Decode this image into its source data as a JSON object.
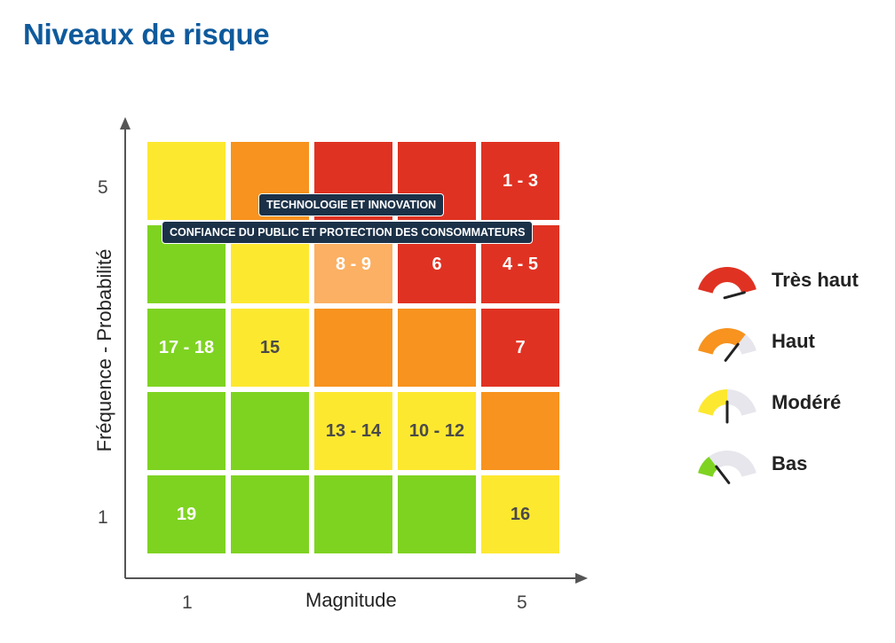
{
  "title": "Niveaux de risque",
  "axes": {
    "x_label": "Magnitude",
    "y_label": "Fréquence - Probabilité",
    "x_ticks": [
      "1",
      "5"
    ],
    "y_ticks": [
      "5",
      "1"
    ]
  },
  "colors": {
    "tres_haut": "#e03222",
    "haut": "#f7931e",
    "haut_light": "#fbb063",
    "modere": "#fde830",
    "bas": "#7ed321"
  },
  "matrix": [
    [
      {
        "level": "modere",
        "label": ""
      },
      {
        "level": "haut",
        "label": ""
      },
      {
        "level": "tres_haut",
        "label": ""
      },
      {
        "level": "tres_haut",
        "label": ""
      },
      {
        "level": "tres_haut",
        "label": "1 - 3"
      }
    ],
    [
      {
        "level": "bas",
        "label": ""
      },
      {
        "level": "modere",
        "label": ""
      },
      {
        "level": "haut_light",
        "label": "8 - 9"
      },
      {
        "level": "tres_haut",
        "label": "6"
      },
      {
        "level": "tres_haut",
        "label": "4 - 5"
      }
    ],
    [
      {
        "level": "bas",
        "label": "17 - 18"
      },
      {
        "level": "modere",
        "label": "15"
      },
      {
        "level": "haut",
        "label": ""
      },
      {
        "level": "haut",
        "label": ""
      },
      {
        "level": "tres_haut",
        "label": "7"
      }
    ],
    [
      {
        "level": "bas",
        "label": ""
      },
      {
        "level": "bas",
        "label": ""
      },
      {
        "level": "modere",
        "label": "13 - 14"
      },
      {
        "level": "modere",
        "label": "10 - 12"
      },
      {
        "level": "haut",
        "label": ""
      }
    ],
    [
      {
        "level": "bas",
        "label": "19"
      },
      {
        "level": "bas",
        "label": ""
      },
      {
        "level": "bas",
        "label": ""
      },
      {
        "level": "bas",
        "label": ""
      },
      {
        "level": "modere",
        "label": "16"
      }
    ]
  ],
  "tags": {
    "technologie": "TECHNOLOGIE ET INNOVATION",
    "confiance": "CONFIANCE DU PUBLIC ET PROTECTION DES CONSOMMATEURS"
  },
  "legend": [
    {
      "label": "Très haut",
      "level": "tres_haut",
      "gauge_fill": 1.0
    },
    {
      "label": "Haut",
      "level": "haut",
      "gauge_fill": 0.75
    },
    {
      "label": "Modéré",
      "level": "modere",
      "gauge_fill": 0.5
    },
    {
      "label": "Bas",
      "level": "bas",
      "gauge_fill": 0.25
    }
  ]
}
